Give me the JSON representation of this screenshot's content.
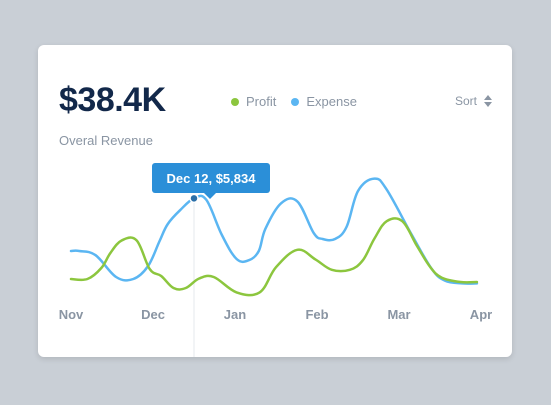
{
  "header": {
    "value": "$38.4K",
    "subtitle": "Overal Revenue"
  },
  "legend": [
    {
      "label": "Profit",
      "color": "#8cc63e"
    },
    {
      "label": "Expense",
      "color": "#5bb6f2"
    }
  ],
  "sort": {
    "label": "Sort",
    "icon": "sort-icon"
  },
  "tooltip": {
    "label": "Dec 12, $5,834",
    "series": "Expense",
    "x": "Dec 12",
    "value": 5834
  },
  "chart_data": {
    "type": "line",
    "x_labels": [
      "Nov",
      "Dec",
      "Jan",
      "Feb",
      "Mar",
      "Apr"
    ],
    "series": [
      {
        "name": "Expense",
        "color": "#5bb6f2",
        "x": [
          0.0,
          0.1,
          0.3,
          0.55,
          0.76,
          0.94,
          1.08,
          1.18,
          1.33,
          1.5,
          1.65,
          1.84,
          2.02,
          2.17,
          2.29,
          2.37,
          2.56,
          2.76,
          2.96,
          3.07,
          3.22,
          3.36,
          3.5,
          3.7,
          3.85,
          4.15,
          4.4,
          4.56,
          4.77,
          4.95
        ],
        "values": [
          3200,
          3200,
          2990,
          1900,
          1800,
          2450,
          3700,
          4550,
          5240,
          5834,
          5760,
          4000,
          2800,
          2740,
          3200,
          4300,
          5580,
          5680,
          4100,
          3800,
          3800,
          4400,
          6200,
          6820,
          6270,
          4050,
          2300,
          1720,
          1580,
          1580
        ]
      },
      {
        "name": "Profit",
        "color": "#8cc63e",
        "x": [
          0.0,
          0.2,
          0.37,
          0.48,
          0.62,
          0.8,
          0.96,
          1.1,
          1.25,
          1.4,
          1.56,
          1.74,
          2.02,
          2.3,
          2.5,
          2.76,
          2.98,
          3.18,
          3.4,
          3.56,
          3.7,
          3.85,
          4.04,
          4.22,
          4.38,
          4.52,
          4.75,
          4.95
        ],
        "values": [
          1800,
          1800,
          2350,
          3100,
          3730,
          3730,
          2300,
          1950,
          1350,
          1350,
          1820,
          1900,
          1130,
          1130,
          2390,
          3260,
          2780,
          2260,
          2260,
          2740,
          3820,
          4690,
          4690,
          3450,
          2400,
          1870,
          1650,
          1650
        ]
      }
    ]
  }
}
